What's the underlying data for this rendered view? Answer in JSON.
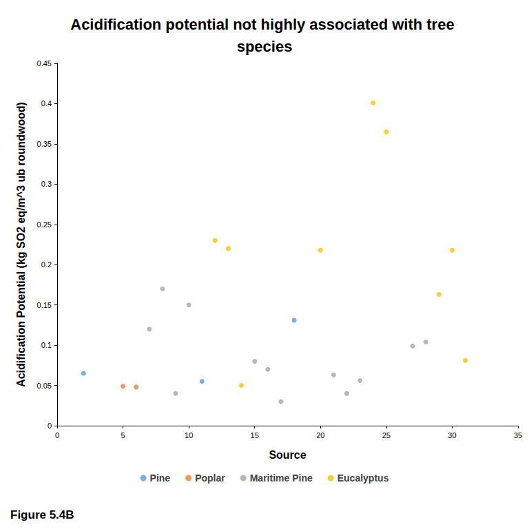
{
  "chart_data": {
    "type": "scatter",
    "title": "Acidification potential not highly associated with tree species",
    "x_label": "Source",
    "y_label": "Acidification Potential (kg SO2 eq/m^3 ub roundwood)",
    "annotation": "Figure 5.4B",
    "xlim": [
      0,
      35
    ],
    "xticks": [
      0,
      5,
      10,
      15,
      20,
      25,
      30,
      35
    ],
    "ylim": [
      0,
      0.45
    ],
    "yticks": [
      0,
      0.05,
      0.1,
      0.15,
      0.2,
      0.25,
      0.3,
      0.35,
      0.4,
      0.45
    ],
    "grid": false,
    "legend": "bottom",
    "marker": "circle",
    "series": [
      {
        "name": "Pine",
        "color": "#5b9bd5",
        "x": [
          2,
          11,
          18
        ],
        "values": [
          0.065,
          0.055,
          0.131
        ]
      },
      {
        "name": "Poplar",
        "color": "#ed7d31",
        "x": [
          5,
          6
        ],
        "values": [
          0.049,
          0.048
        ]
      },
      {
        "name": "Maritime Pine",
        "color": "#a5a5a5",
        "x": [
          7,
          8,
          9,
          10,
          15,
          16,
          17,
          21,
          22,
          23,
          27,
          28
        ],
        "values": [
          0.12,
          0.17,
          0.04,
          0.15,
          0.08,
          0.07,
          0.03,
          0.063,
          0.04,
          0.056,
          0.099,
          0.104
        ]
      },
      {
        "name": "Eucalyptus",
        "color": "#ffc000",
        "x": [
          12,
          13,
          14,
          20,
          24,
          25,
          29,
          30,
          31
        ],
        "values": [
          0.23,
          0.22,
          0.05,
          0.218,
          0.401,
          0.365,
          0.163,
          0.218,
          0.081
        ]
      }
    ]
  }
}
